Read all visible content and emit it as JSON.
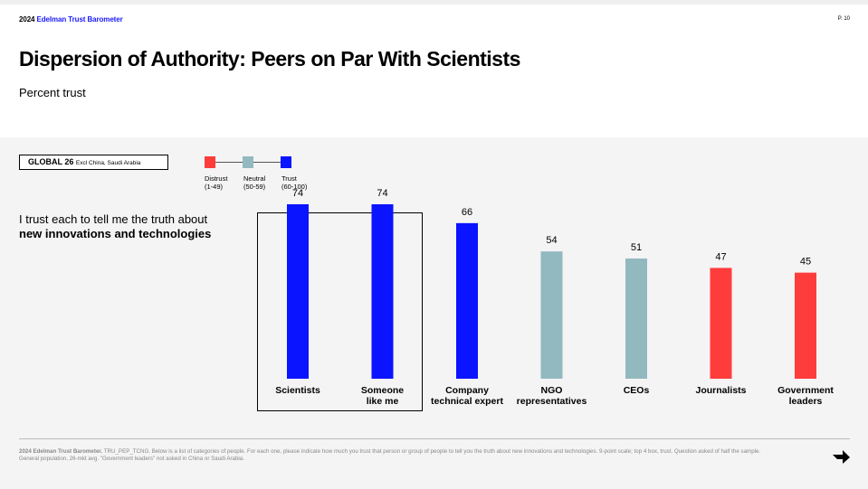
{
  "header": {
    "brand_year": "2024",
    "brand_name": "Edelman Trust Barometer",
    "page": "P. 10"
  },
  "title": "Dispersion of Authority: Peers on Par With Scientists",
  "subtitle": "Percent trust",
  "global": {
    "label": "GLOBAL 26",
    "exclusion": "Excl China, Saudi Arabia"
  },
  "legend": [
    {
      "name": "Distrust",
      "range": "(1-49)",
      "color": "#ff3c3c"
    },
    {
      "name": "Neutral",
      "range": "(50-59)",
      "color": "#92b9bf"
    },
    {
      "name": "Trust",
      "range": "(60-100)",
      "color": "#0a14ff"
    }
  ],
  "question": {
    "line1": "I trust each to tell me the truth about",
    "line2": "new innovations and technologies"
  },
  "chart_data": {
    "type": "bar",
    "title": "Percent trust",
    "categories": [
      [
        "Scientists"
      ],
      [
        "Someone",
        "like me"
      ],
      [
        "Company",
        "technical expert"
      ],
      [
        "NGO",
        "representatives"
      ],
      [
        "CEOs"
      ],
      [
        "Journalists"
      ],
      [
        "Government",
        "leaders"
      ]
    ],
    "values": [
      74,
      74,
      66,
      54,
      51,
      47,
      45
    ],
    "colors": [
      "#0a14ff",
      "#0a14ff",
      "#0a14ff",
      "#92b9bf",
      "#92b9bf",
      "#ff3c3c",
      "#ff3c3c"
    ],
    "ylim": [
      0,
      100
    ],
    "highlighted": [
      "Scientists",
      "Someone like me"
    ]
  },
  "footnote": {
    "source": "2024 Edelman Trust Barometer.",
    "text": " TRU_PEP_TCNG. Below is a list of categories of people. For each one, please indicate how much you trust that person or group of people to tell you the truth about new innovations and technologies. 9-point scale; top 4 box, trust. Question asked of half the sample. General population, 26-mkt avg. \"Government leaders\" not asked in China or Saudi Arabia."
  }
}
